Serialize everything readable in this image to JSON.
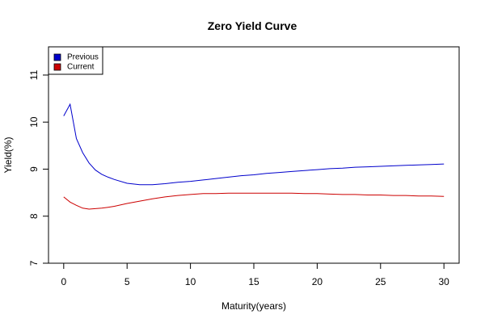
{
  "chart_data": {
    "type": "line",
    "title": "Zero Yield Curve",
    "xlabel": "Maturity(years)",
    "ylabel": "Yield(%)",
    "xlim": [
      -1.2,
      31.2
    ],
    "ylim": [
      7.0,
      11.6
    ],
    "xticks": [
      "0",
      "5",
      "10",
      "15",
      "20",
      "25",
      "30"
    ],
    "yticks": [
      "7",
      "8",
      "9",
      "10",
      "11"
    ],
    "grid": false,
    "legend_position": "top-left",
    "series": [
      {
        "name": "Previous",
        "color": "#0000CC",
        "x": [
          0,
          0.5,
          1,
          1.5,
          2,
          2.5,
          3,
          3.5,
          4,
          5,
          6,
          7,
          8,
          9,
          10,
          11,
          12,
          13,
          14,
          15,
          16,
          17,
          18,
          19,
          20,
          21,
          22,
          23,
          24,
          25,
          26,
          27,
          28,
          29,
          30
        ],
        "y": [
          10.13,
          10.38,
          9.65,
          9.35,
          9.13,
          8.98,
          8.89,
          8.83,
          8.78,
          8.7,
          8.67,
          8.67,
          8.69,
          8.72,
          8.74,
          8.77,
          8.8,
          8.83,
          8.86,
          8.88,
          8.91,
          8.93,
          8.95,
          8.97,
          8.99,
          9.01,
          9.02,
          9.04,
          9.05,
          9.06,
          9.07,
          9.08,
          9.09,
          9.1,
          9.11
        ]
      },
      {
        "name": "Current",
        "color": "#CC0000",
        "x": [
          0,
          0.5,
          1,
          1.5,
          2,
          2.5,
          3,
          3.5,
          4,
          5,
          6,
          7,
          8,
          9,
          10,
          11,
          12,
          13,
          14,
          15,
          16,
          17,
          18,
          19,
          20,
          21,
          22,
          23,
          24,
          25,
          26,
          27,
          28,
          29,
          30
        ],
        "y": [
          8.41,
          8.3,
          8.23,
          8.17,
          8.15,
          8.16,
          8.17,
          8.19,
          8.21,
          8.27,
          8.32,
          8.37,
          8.41,
          8.44,
          8.46,
          8.48,
          8.48,
          8.49,
          8.49,
          8.49,
          8.49,
          8.49,
          8.49,
          8.48,
          8.48,
          8.47,
          8.46,
          8.46,
          8.45,
          8.45,
          8.44,
          8.44,
          8.43,
          8.43,
          8.42
        ]
      }
    ]
  }
}
